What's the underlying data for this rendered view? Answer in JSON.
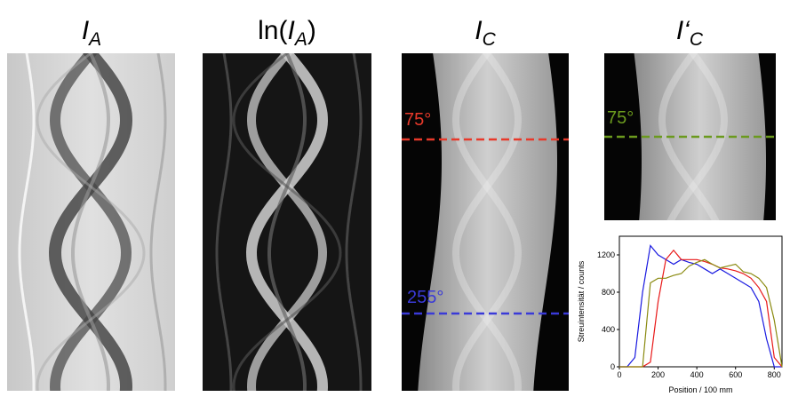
{
  "panels": [
    {
      "title": [
        {
          "text": "I",
          "style": "italic"
        },
        {
          "text": "A",
          "style": "sub"
        }
      ]
    },
    {
      "title": [
        {
          "text": "ln("
        },
        {
          "text": "I",
          "style": "italic"
        },
        {
          "text": "A",
          "style": "sub"
        },
        {
          "text": ")"
        }
      ]
    },
    {
      "title": [
        {
          "text": "I",
          "style": "italic"
        },
        {
          "text": "C",
          "style": "sub"
        }
      ],
      "markers": [
        {
          "label": "75°",
          "color": "#e8392a"
        },
        {
          "label": "255°",
          "color": "#3a3ad8"
        }
      ]
    },
    {
      "title": [
        {
          "text": "I‘",
          "style": "italic"
        },
        {
          "text": "C",
          "style": "sub"
        }
      ],
      "markers": [
        {
          "label": "75°",
          "color": "#6b9a1e"
        }
      ]
    }
  ],
  "chart_data": {
    "type": "line",
    "x_label": "Position / 100 mm",
    "y_label": "Streuintensität / counts",
    "x": [
      0,
      40,
      80,
      120,
      160,
      200,
      240,
      280,
      320,
      360,
      400,
      440,
      480,
      520,
      560,
      600,
      640,
      680,
      720,
      760,
      800,
      840
    ],
    "series": [
      {
        "color": "#1a1ae0",
        "values": [
          0,
          0,
          100,
          800,
          1300,
          1200,
          1150,
          1100,
          1150,
          1120,
          1100,
          1050,
          1000,
          1050,
          1000,
          950,
          900,
          850,
          700,
          300,
          0,
          0
        ]
      },
      {
        "color": "#e81818",
        "values": [
          0,
          0,
          0,
          0,
          50,
          700,
          1150,
          1250,
          1150,
          1150,
          1150,
          1130,
          1100,
          1060,
          1050,
          1030,
          1000,
          950,
          850,
          700,
          100,
          0
        ]
      },
      {
        "color": "#8a8a10",
        "values": [
          0,
          0,
          0,
          0,
          900,
          950,
          950,
          980,
          1000,
          1080,
          1120,
          1150,
          1100,
          1060,
          1080,
          1100,
          1020,
          1000,
          950,
          850,
          500,
          0
        ]
      }
    ],
    "xlim": [
      0,
      840
    ],
    "ylim": [
      0,
      1400
    ],
    "xticks": [
      0,
      200,
      400,
      600,
      800
    ],
    "yticks": [
      0,
      400,
      800,
      1200
    ]
  }
}
